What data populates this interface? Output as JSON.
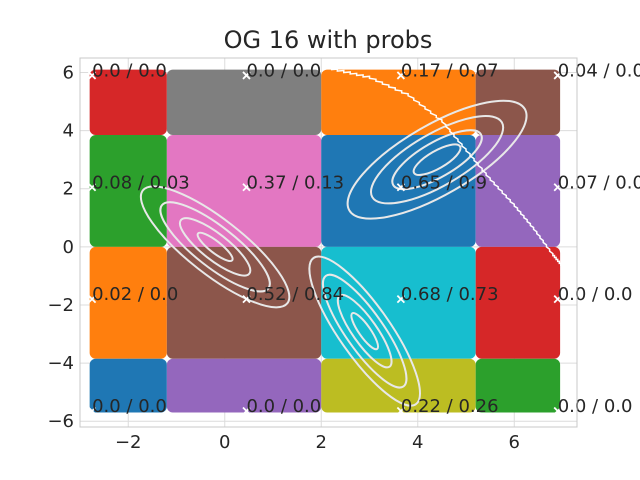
{
  "chart_data": {
    "type": "heatmap",
    "title": "OG 16 with probs",
    "xlabel": "",
    "ylabel": "",
    "xlim": [
      -3.0,
      7.3
    ],
    "ylim": [
      -6.2,
      6.5
    ],
    "xticks": [
      -2,
      0,
      2,
      4,
      6
    ],
    "yticks": [
      -6,
      -4,
      -2,
      0,
      2,
      4,
      6
    ],
    "xtick_labels": [
      "−2",
      "0",
      "2",
      "4",
      "6"
    ],
    "ytick_labels": [
      "−6",
      "−4",
      "−2",
      "0",
      "2",
      "4",
      "6"
    ],
    "grid": true,
    "legend": "none",
    "cells": [
      {
        "x0": -2.8,
        "x1": -1.2,
        "y0": 3.85,
        "y1": 6.1,
        "color": "#d62728"
      },
      {
        "x0": -1.2,
        "x1": 2.0,
        "y0": 3.85,
        "y1": 6.1,
        "color": "#7f7f7f"
      },
      {
        "x0": 2.0,
        "x1": 5.2,
        "y0": 3.85,
        "y1": 6.1,
        "color": "#ff7f0e"
      },
      {
        "x0": 5.2,
        "x1": 6.95,
        "y0": 3.85,
        "y1": 6.1,
        "color": "#8c564b"
      },
      {
        "x0": -2.8,
        "x1": -1.2,
        "y0": 0.0,
        "y1": 3.85,
        "color": "#2ca02c"
      },
      {
        "x0": -1.2,
        "x1": 2.0,
        "y0": 0.0,
        "y1": 3.85,
        "color": "#e377c2"
      },
      {
        "x0": 2.0,
        "x1": 5.2,
        "y0": 0.0,
        "y1": 3.85,
        "color": "#1f77b4"
      },
      {
        "x0": 5.2,
        "x1": 6.95,
        "y0": 0.0,
        "y1": 3.85,
        "color": "#9467bd"
      },
      {
        "x0": -2.8,
        "x1": -1.2,
        "y0": -3.85,
        "y1": 0.0,
        "color": "#ff7f0e"
      },
      {
        "x0": -1.2,
        "x1": 2.0,
        "y0": -3.85,
        "y1": 0.0,
        "color": "#8c564b"
      },
      {
        "x0": 2.0,
        "x1": 5.2,
        "y0": -3.85,
        "y1": 0.0,
        "color": "#17becf"
      },
      {
        "x0": 5.2,
        "x1": 6.95,
        "y0": -3.85,
        "y1": 0.0,
        "color": "#d62728"
      },
      {
        "x0": -2.8,
        "x1": -1.2,
        "y0": -5.7,
        "y1": -3.85,
        "color": "#1f77b4"
      },
      {
        "x0": -1.2,
        "x1": 2.0,
        "y0": -5.7,
        "y1": -3.85,
        "color": "#9467bd"
      },
      {
        "x0": 2.0,
        "x1": 5.2,
        "y0": -5.7,
        "y1": -3.85,
        "color": "#bcbd22"
      },
      {
        "x0": 5.2,
        "x1": 6.95,
        "y0": -5.7,
        "y1": -3.85,
        "color": "#2ca02c"
      }
    ],
    "points": [
      {
        "x": -2.75,
        "y": 5.9,
        "label": "0.0 / 0.0"
      },
      {
        "x": 0.45,
        "y": 5.9,
        "label": "0.0 / 0.0"
      },
      {
        "x": 3.65,
        "y": 5.9,
        "label": "0.17 / 0.07"
      },
      {
        "x": 6.9,
        "y": 5.9,
        "label": "0.04 / 0.0"
      },
      {
        "x": -2.75,
        "y": 2.05,
        "label": "0.08 / 0.03"
      },
      {
        "x": 0.45,
        "y": 2.05,
        "label": "0.37 / 0.13"
      },
      {
        "x": 3.65,
        "y": 2.05,
        "label": "0.65 / 0.9"
      },
      {
        "x": 6.9,
        "y": 2.05,
        "label": "0.07 / 0.0"
      },
      {
        "x": -2.75,
        "y": -1.8,
        "label": "0.02 / 0.0"
      },
      {
        "x": 0.45,
        "y": -1.8,
        "label": "0.52 / 0.84"
      },
      {
        "x": 3.65,
        "y": -1.8,
        "label": "0.68 / 0.73"
      },
      {
        "x": 6.9,
        "y": -1.8,
        "label": "0.0 / 0.0"
      },
      {
        "x": -2.75,
        "y": -5.65,
        "label": "0.0 / 0.0"
      },
      {
        "x": 0.45,
        "y": -5.65,
        "label": "0.0 / 0.0"
      },
      {
        "x": 3.65,
        "y": -5.65,
        "label": "0.22 / 0.26"
      },
      {
        "x": 6.9,
        "y": -5.65,
        "label": "0.0 / 0.0"
      }
    ],
    "contours": [
      {
        "cx": 4.4,
        "cy": 3.0,
        "a": [
          0.55,
          1.05,
          1.55,
          2.1
        ],
        "b": [
          0.3,
          0.6,
          0.9,
          1.2
        ],
        "angle_deg": 30
      },
      {
        "cx": -0.2,
        "cy": 0.0,
        "a": [
          0.45,
          0.9,
          1.4,
          1.9
        ],
        "b": [
          0.2,
          0.45,
          0.7,
          0.95
        ],
        "angle_deg": -38
      },
      {
        "cx": 2.9,
        "cy": -2.9,
        "a": [
          0.45,
          0.9,
          1.4,
          1.85
        ],
        "b": [
          0.2,
          0.42,
          0.65,
          0.88
        ],
        "angle_deg": -55
      }
    ],
    "boundary_line": [
      [
        2.2,
        6.1
      ],
      [
        3.0,
        5.8
      ],
      [
        3.8,
        5.2
      ],
      [
        4.5,
        4.3
      ],
      [
        5.0,
        3.3
      ],
      [
        5.5,
        2.3
      ],
      [
        6.0,
        1.4
      ],
      [
        6.4,
        0.6
      ],
      [
        6.8,
        -0.3
      ],
      [
        7.0,
        -0.7
      ]
    ],
    "colors": {
      "contour": "#e8e8e8",
      "marker": "#ffffff",
      "grid": "#dcdcdc",
      "frame": "#c8c8c8",
      "text": "#262626"
    }
  }
}
